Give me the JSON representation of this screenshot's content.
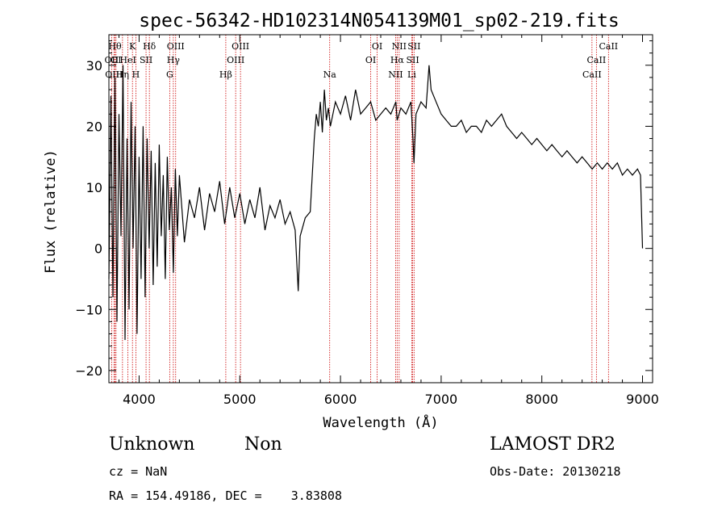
{
  "chart_data": {
    "type": "line",
    "title": "spec-56342-HD102314N054139M01_sp02-219.fits",
    "xlabel": "Wavelength (Å)",
    "ylabel": "Flux (relative)",
    "xlim": [
      3700,
      9100
    ],
    "ylim": [
      -22,
      35
    ],
    "x_ticks": [
      4000,
      5000,
      6000,
      7000,
      8000,
      9000
    ],
    "y_ticks": [
      -20,
      -10,
      0,
      10,
      20,
      30
    ],
    "grid": false,
    "series": [
      {
        "x": [
          3700,
          3720,
          3740,
          3760,
          3780,
          3800,
          3820,
          3840,
          3860,
          3880,
          3900,
          3920,
          3940,
          3960,
          3980,
          4000,
          4020,
          4040,
          4060,
          4080,
          4100,
          4120,
          4140,
          4160,
          4180,
          4200,
          4220,
          4240,
          4260,
          4280,
          4300,
          4320,
          4340,
          4360,
          4380,
          4400,
          4450,
          4500,
          4550,
          4600,
          4650,
          4700,
          4750,
          4800,
          4850,
          4900,
          4950,
          5000,
          5050,
          5100,
          5150,
          5200,
          5250,
          5300,
          5350,
          5400,
          5450,
          5500,
          5550,
          5580,
          5600,
          5650,
          5700,
          5720,
          5740,
          5760,
          5780,
          5800,
          5820,
          5840,
          5860,
          5880,
          5900,
          5950,
          6000,
          6050,
          6100,
          6150,
          6200,
          6250,
          6300,
          6350,
          6400,
          6450,
          6500,
          6550,
          6563,
          6600,
          6650,
          6700,
          6720,
          6730,
          6750,
          6800,
          6850,
          6880,
          6900,
          6950,
          7000,
          7050,
          7100,
          7150,
          7200,
          7250,
          7300,
          7350,
          7400,
          7450,
          7500,
          7550,
          7600,
          7650,
          7700,
          7750,
          7800,
          7850,
          7900,
          7950,
          8000,
          8050,
          8100,
          8150,
          8200,
          8250,
          8300,
          8350,
          8400,
          8450,
          8500,
          8550,
          8600,
          8650,
          8700,
          8750,
          8800,
          8850,
          8900,
          8950,
          8980,
          9000
        ],
        "y": [
          -5,
          25,
          -8,
          28,
          -12,
          22,
          2,
          30,
          -15,
          18,
          -10,
          24,
          0,
          20,
          -14,
          15,
          -5,
          20,
          -8,
          18,
          0,
          16,
          -6,
          14,
          -3,
          17,
          2,
          12,
          -5,
          15,
          3,
          10,
          -4,
          13,
          2,
          12,
          1,
          8,
          5,
          10,
          3,
          9,
          6,
          11,
          4,
          10,
          5,
          9,
          4,
          8,
          5,
          10,
          3,
          7,
          5,
          8,
          4,
          6,
          3,
          -7,
          2,
          5,
          6,
          12,
          18,
          22,
          20,
          24,
          19,
          26,
          21,
          23,
          20,
          24,
          22,
          25,
          21,
          26,
          22,
          23,
          24,
          21,
          22,
          23,
          22,
          24,
          21,
          23,
          22,
          24,
          18,
          14,
          22,
          24,
          23,
          30,
          26,
          24,
          22,
          21,
          20,
          20,
          21,
          19,
          20,
          20,
          19,
          21,
          20,
          21,
          22,
          20,
          19,
          18,
          19,
          18,
          17,
          18,
          17,
          16,
          17,
          16,
          15,
          16,
          15,
          14,
          15,
          14,
          13,
          14,
          13,
          14,
          13,
          14,
          12,
          13,
          12,
          13,
          12,
          0
        ]
      }
    ],
    "line_markers": [
      {
        "wavelength": 3727,
        "label": "OII",
        "row": 2
      },
      {
        "wavelength": 3750,
        "label": "OIII",
        "row": 3
      },
      {
        "wavelength": 3760,
        "label": "Hθ",
        "row": 1
      },
      {
        "wavelength": 3771,
        "label": "OI",
        "row": 2
      },
      {
        "wavelength": 3835,
        "label": "Hη",
        "row": 3
      },
      {
        "wavelength": 3889,
        "label": "HeI",
        "row": 2
      },
      {
        "wavelength": 3934,
        "label": "K",
        "row": 1
      },
      {
        "wavelength": 3968,
        "label": "H",
        "row": 3
      },
      {
        "wavelength": 4069,
        "label": "SII",
        "row": 2
      },
      {
        "wavelength": 4102,
        "label": "Hδ",
        "row": 1
      },
      {
        "wavelength": 4304,
        "label": "G",
        "row": 3
      },
      {
        "wavelength": 4340,
        "label": "Hγ",
        "row": 2
      },
      {
        "wavelength": 4363,
        "label": "OIII",
        "row": 1
      },
      {
        "wavelength": 4861,
        "label": "Hβ",
        "row": 3
      },
      {
        "wavelength": 4959,
        "label": "OIII",
        "row": 2
      },
      {
        "wavelength": 5007,
        "label": "OIII",
        "row": 1
      },
      {
        "wavelength": 5893,
        "label": "Na",
        "row": 3
      },
      {
        "wavelength": 6300,
        "label": "OI",
        "row": 2
      },
      {
        "wavelength": 6364,
        "label": "OI",
        "row": 1
      },
      {
        "wavelength": 6548,
        "label": "NII",
        "row": 3
      },
      {
        "wavelength": 6563,
        "label": "Hα",
        "row": 2
      },
      {
        "wavelength": 6583,
        "label": "NII",
        "row": 1
      },
      {
        "wavelength": 6708,
        "label": "Li",
        "row": 3
      },
      {
        "wavelength": 6717,
        "label": "SII",
        "row": 2
      },
      {
        "wavelength": 6731,
        "label": "SII",
        "row": 1
      },
      {
        "wavelength": 8498,
        "label": "CaII",
        "row": 3
      },
      {
        "wavelength": 8542,
        "label": "CaII",
        "row": 2
      },
      {
        "wavelength": 8662,
        "label": "CaII",
        "row": 1
      }
    ]
  },
  "info": {
    "class": "Unknown",
    "subclass": "Non",
    "cz": "cz = NaN",
    "coords": "RA = 154.49186, DEC =    3.83808",
    "survey": "LAMOST DR2",
    "obs_date": "Obs-Date: 20130218"
  },
  "colors": {
    "spectrum": "#000000",
    "axes": "#000000",
    "line_markers": "#cc0000",
    "background": "#ffffff"
  }
}
